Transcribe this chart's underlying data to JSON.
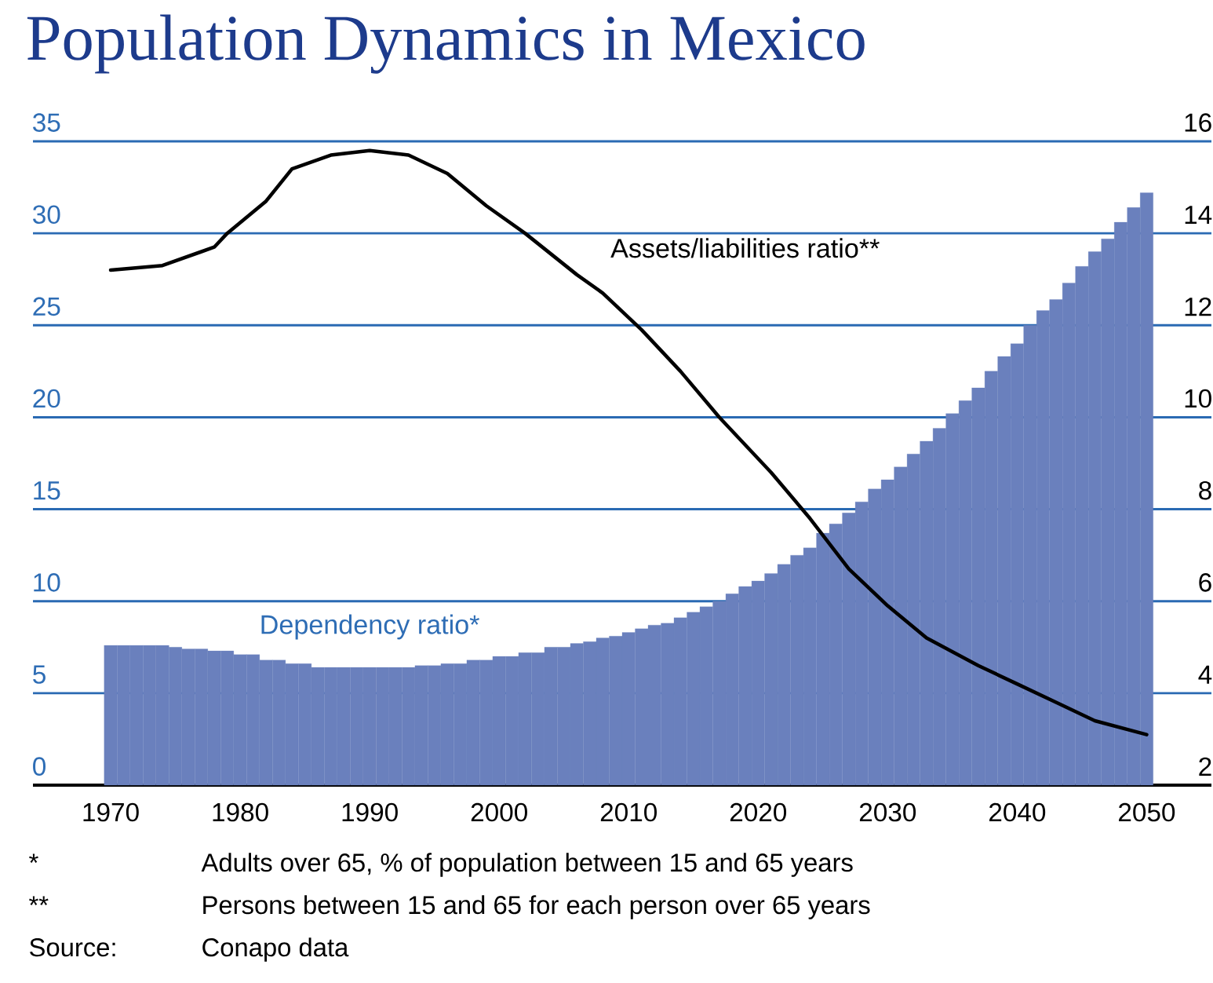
{
  "chart_data": {
    "type": "bar",
    "title": "Population Dynamics in Mexico",
    "x": [
      1970,
      1971,
      1972,
      1973,
      1974,
      1975,
      1976,
      1977,
      1978,
      1979,
      1980,
      1981,
      1982,
      1983,
      1984,
      1985,
      1986,
      1987,
      1988,
      1989,
      1990,
      1991,
      1992,
      1993,
      1994,
      1995,
      1996,
      1997,
      1998,
      1999,
      2000,
      2001,
      2002,
      2003,
      2004,
      2005,
      2006,
      2007,
      2008,
      2009,
      2010,
      2011,
      2012,
      2013,
      2014,
      2015,
      2016,
      2017,
      2018,
      2019,
      2020,
      2021,
      2022,
      2023,
      2024,
      2025,
      2026,
      2027,
      2028,
      2029,
      2030,
      2031,
      2032,
      2033,
      2034,
      2035,
      2036,
      2037,
      2038,
      2039,
      2040,
      2041,
      2042,
      2043,
      2044,
      2045,
      2046,
      2047,
      2048,
      2049,
      2050
    ],
    "series": [
      {
        "name": "Dependency ratio*",
        "color": "#6a80bd",
        "values": [
          7.6,
          7.6,
          7.6,
          7.6,
          7.6,
          7.5,
          7.4,
          7.4,
          7.3,
          7.3,
          7.1,
          7.1,
          6.8,
          6.8,
          6.6,
          6.6,
          6.4,
          6.4,
          6.4,
          6.4,
          6.4,
          6.4,
          6.4,
          6.4,
          6.5,
          6.5,
          6.6,
          6.6,
          6.8,
          6.8,
          7.0,
          7.0,
          7.2,
          7.2,
          7.5,
          7.5,
          7.7,
          7.8,
          8.0,
          8.1,
          8.3,
          8.5,
          8.7,
          8.8,
          9.1,
          9.4,
          9.7,
          10.0,
          10.4,
          10.8,
          11.1,
          11.5,
          12.0,
          12.5,
          12.9,
          13.7,
          14.2,
          14.8,
          15.4,
          16.1,
          16.6,
          17.3,
          18.0,
          18.7,
          19.4,
          20.2,
          20.9,
          21.6,
          22.5,
          23.3,
          24.0,
          25.0,
          25.8,
          26.4,
          27.3,
          28.2,
          29.0,
          29.7,
          30.6,
          31.4,
          32.2
        ]
      },
      {
        "name": "Assets/liabilities ratio**",
        "type": "line",
        "axis": "y2",
        "color": "#000000",
        "x": [
          1970,
          1974,
          1978,
          1979,
          1982,
          1984,
          1987,
          1990,
          1993,
          1996,
          1999,
          2002,
          2006,
          2008,
          2011,
          2014,
          2017,
          2021,
          2024,
          2027,
          2030,
          2033,
          2037,
          2040,
          2043,
          2046,
          2050
        ],
        "values": [
          13.2,
          13.3,
          13.7,
          14.0,
          14.7,
          15.4,
          15.7,
          15.8,
          15.7,
          15.3,
          14.6,
          14.0,
          13.1,
          12.7,
          11.9,
          11.0,
          10.0,
          8.8,
          7.8,
          6.7,
          5.9,
          5.2,
          4.6,
          4.2,
          3.8,
          3.4,
          3.1
        ]
      }
    ],
    "xlim": [
      1964,
      2055
    ],
    "xticks": [
      1970,
      1980,
      1990,
      2000,
      2010,
      2020,
      2030,
      2040,
      2050
    ],
    "ylim": [
      0,
      35
    ],
    "yticks": [
      0,
      5,
      10,
      15,
      20,
      25,
      30,
      35
    ],
    "y2lim": [
      2,
      16
    ],
    "y2ticks": [
      2,
      4,
      6,
      8,
      10,
      12,
      14,
      16
    ],
    "grid": "y",
    "annotations": [
      "*",
      "Adults over 65, % of population between 15 and 65 years",
      "**",
      "Persons between 15 and 65 for each person over 65 years",
      "Source:",
      "Conapo data"
    ]
  }
}
